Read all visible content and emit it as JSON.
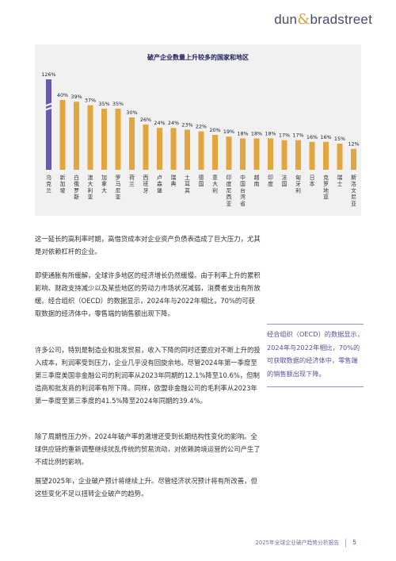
{
  "brand": {
    "prefix": "dun",
    "amp": "&",
    "suffix": "bradstreet"
  },
  "chart_data": {
    "type": "bar",
    "title": "破产企业数量上升较多的国家和地区",
    "categories": [
      "乌克兰",
      "新加坡",
      "白俄罗斯",
      "澳大利亚",
      "加拿大",
      "罗马尼亚",
      "荷兰",
      "西班牙",
      "卢森堡",
      "瑞典",
      "土耳其",
      "德国",
      "意大利",
      "印度尼西亚",
      "中国台湾省",
      "越南",
      "印度",
      "法国",
      "匈牙利",
      "日本",
      "克罗地亚",
      "瑞士",
      "斯洛文尼亚"
    ],
    "values": [
      126,
      40,
      39,
      37,
      35,
      35,
      30,
      26,
      24,
      24,
      23,
      22,
      20,
      19,
      18,
      18,
      18,
      17,
      17,
      16,
      16,
      15,
      12
    ],
    "labels": [
      "126%",
      "40%",
      "39%",
      "37%",
      "35%",
      "35%",
      "30%",
      "26%",
      "24%",
      "24%",
      "23%",
      "22%",
      "20%",
      "19%",
      "18%",
      "18%",
      "18%",
      "17%",
      "17%",
      "16%",
      "16%",
      "15%",
      "12%"
    ],
    "highlight_index": 0,
    "colors": {
      "highlight": "#6a5aa8",
      "bar": "#e2a640",
      "label": "#222222"
    },
    "axis_break": true
  },
  "paragraphs": [
    "这一延长的高利率时期，高借贷成本对企业资产负债表造成了巨大压力，尤其是对依赖杠杆的企业。",
    "即使通胀有所缓解，全球许多地区的经济增长仍然缓慢。由于利率上升的累积影响、财政支持减少以及某些地区的劳动力市场状况减弱，消费者支出有所放缓。经合组织（OECD）的数据显示，2024年与2022年相比，70%的可获取数据的经济体中，零售端的销售额出现下降。",
    "许多公司，特别是制造业和批发贸易，收入下降的同时还要应对不断上升的投入成本，利润率受到压力，企业几乎没有回旋余地。尽管2024年第一季度至第三季度美国非金融公司的利润率从2023年同期的12.1%降至10.6%，但制造商和批发商的利润率有所下降。同样，欧盟非金融公司的毛利率从2023年第一季度至第三季度的41.5%降至2024年同期的39.4%。",
    "除了周期性压力外，2024年破产率的激增还受到长期结构性变化的影响。全球供应链的重新调整继续扰乱传统的贸易流动，对依赖跨境运营的公司产生了不成比例的影响。",
    "展望2025年，企业破产预计将继续上升。尽管经济状况预计将有所改善，但这些变化不足以扭转企业破产的趋势。"
  ],
  "callout": "经合组织（OECD）的数据显示，2024年与2022年相比，70%的可获取数据的经济体中，零售端的销售额出现下降。",
  "footer": {
    "report": "2025年全球企业破产趋势分析报告",
    "page": "5"
  }
}
